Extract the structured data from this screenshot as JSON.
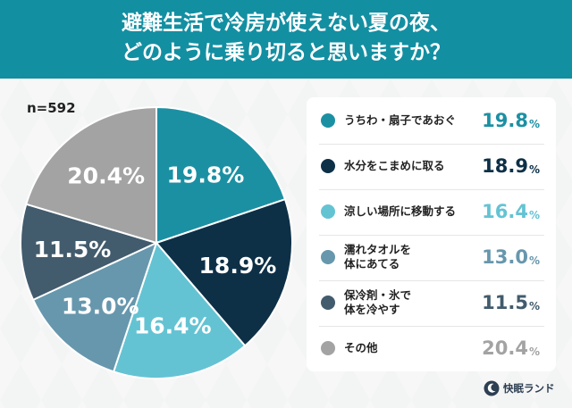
{
  "header": {
    "title_line1": "避難生活で冷房が使えない夏の夜、",
    "title_line2": "どのように乗り切ると思いますか？"
  },
  "sample_size": "n=592",
  "brand": {
    "name": "快眠ランド",
    "icon": "moon-leaf-logo-icon"
  },
  "chart_data": {
    "type": "pie",
    "title": "避難生活で冷房が使えない夏の夜、どのように乗り切ると思いますか？",
    "n": 592,
    "unit": "%",
    "legend_position": "right",
    "slices": [
      {
        "label": "うちわ・扇子であおぐ",
        "value": 19.8,
        "display": "19.8",
        "color": "#1c90a3"
      },
      {
        "label": "水分をこまめに取る",
        "value": 18.9,
        "display": "18.9",
        "color": "#0d3047"
      },
      {
        "label": "涼しい場所に移動する",
        "value": 16.4,
        "display": "16.4",
        "color": "#64c3d3"
      },
      {
        "label": "濡れタオルを\n体にあてる",
        "value": 13.0,
        "display": "13.0",
        "color": "#6797ad"
      },
      {
        "label": "保冷剤・氷で\n体を冷やす",
        "value": 11.5,
        "display": "11.5",
        "color": "#425b6d"
      },
      {
        "label": "その他",
        "value": 20.4,
        "display": "20.4",
        "color": "#a3a3a3"
      }
    ]
  }
}
